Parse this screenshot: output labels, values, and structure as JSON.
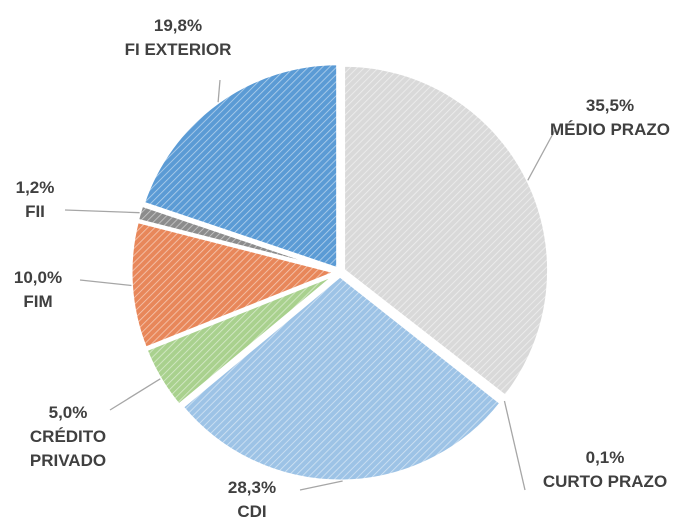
{
  "chart_data": {
    "type": "pie",
    "categories": [
      "MÉDIO PRAZO",
      "CURTO PRAZO",
      "CDI",
      "CRÉDITO PRIVADO",
      "FIM",
      "FII",
      "FI EXTERIOR"
    ],
    "values": [
      35.5,
      0.1,
      28.3,
      5.0,
      10.0,
      1.2,
      19.8
    ],
    "value_labels": [
      "35,5%",
      "0,1%",
      "28,3%",
      "5,0%",
      "10,0%",
      "1,2%",
      "19,8%"
    ],
    "colors": [
      "#d9d9d9",
      "#bfbfbf",
      "#9dc3e6",
      "#a9d18e",
      "#e8875a",
      "#8c8c8c",
      "#5b9bd5"
    ]
  }
}
